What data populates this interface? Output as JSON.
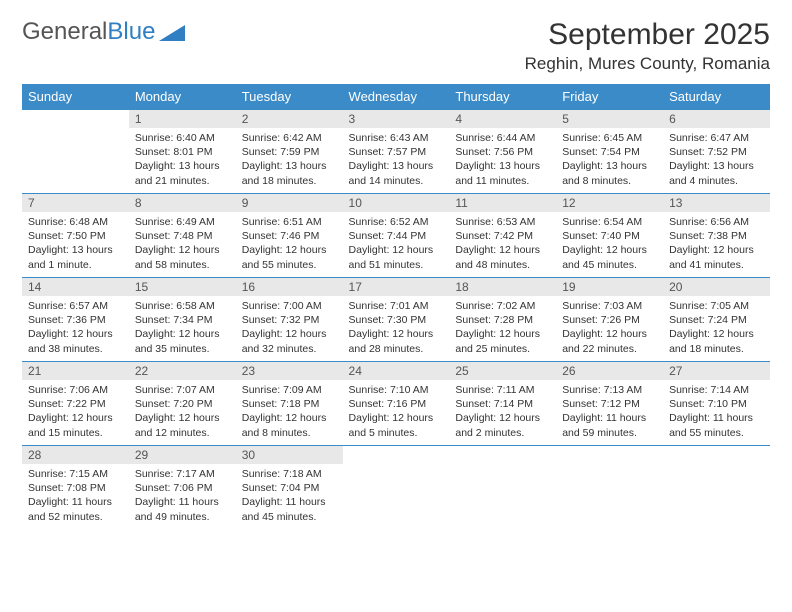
{
  "brand": {
    "part1": "General",
    "part2": "Blue"
  },
  "title": "September 2025",
  "location": "Reghin, Mures County, Romania",
  "colors": {
    "header_bg": "#3b8bc8",
    "header_text": "#ffffff",
    "daynum_bg": "#e8e8e8",
    "border": "#3b8bc8",
    "text": "#333333"
  },
  "weekdays": [
    "Sunday",
    "Monday",
    "Tuesday",
    "Wednesday",
    "Thursday",
    "Friday",
    "Saturday"
  ],
  "weeks": [
    [
      null,
      {
        "n": "1",
        "sr": "6:40 AM",
        "ss": "8:01 PM",
        "dl": "13 hours and 21 minutes."
      },
      {
        "n": "2",
        "sr": "6:42 AM",
        "ss": "7:59 PM",
        "dl": "13 hours and 18 minutes."
      },
      {
        "n": "3",
        "sr": "6:43 AM",
        "ss": "7:57 PM",
        "dl": "13 hours and 14 minutes."
      },
      {
        "n": "4",
        "sr": "6:44 AM",
        "ss": "7:56 PM",
        "dl": "13 hours and 11 minutes."
      },
      {
        "n": "5",
        "sr": "6:45 AM",
        "ss": "7:54 PM",
        "dl": "13 hours and 8 minutes."
      },
      {
        "n": "6",
        "sr": "6:47 AM",
        "ss": "7:52 PM",
        "dl": "13 hours and 4 minutes."
      }
    ],
    [
      {
        "n": "7",
        "sr": "6:48 AM",
        "ss": "7:50 PM",
        "dl": "13 hours and 1 minute."
      },
      {
        "n": "8",
        "sr": "6:49 AM",
        "ss": "7:48 PM",
        "dl": "12 hours and 58 minutes."
      },
      {
        "n": "9",
        "sr": "6:51 AM",
        "ss": "7:46 PM",
        "dl": "12 hours and 55 minutes."
      },
      {
        "n": "10",
        "sr": "6:52 AM",
        "ss": "7:44 PM",
        "dl": "12 hours and 51 minutes."
      },
      {
        "n": "11",
        "sr": "6:53 AM",
        "ss": "7:42 PM",
        "dl": "12 hours and 48 minutes."
      },
      {
        "n": "12",
        "sr": "6:54 AM",
        "ss": "7:40 PM",
        "dl": "12 hours and 45 minutes."
      },
      {
        "n": "13",
        "sr": "6:56 AM",
        "ss": "7:38 PM",
        "dl": "12 hours and 41 minutes."
      }
    ],
    [
      {
        "n": "14",
        "sr": "6:57 AM",
        "ss": "7:36 PM",
        "dl": "12 hours and 38 minutes."
      },
      {
        "n": "15",
        "sr": "6:58 AM",
        "ss": "7:34 PM",
        "dl": "12 hours and 35 minutes."
      },
      {
        "n": "16",
        "sr": "7:00 AM",
        "ss": "7:32 PM",
        "dl": "12 hours and 32 minutes."
      },
      {
        "n": "17",
        "sr": "7:01 AM",
        "ss": "7:30 PM",
        "dl": "12 hours and 28 minutes."
      },
      {
        "n": "18",
        "sr": "7:02 AM",
        "ss": "7:28 PM",
        "dl": "12 hours and 25 minutes."
      },
      {
        "n": "19",
        "sr": "7:03 AM",
        "ss": "7:26 PM",
        "dl": "12 hours and 22 minutes."
      },
      {
        "n": "20",
        "sr": "7:05 AM",
        "ss": "7:24 PM",
        "dl": "12 hours and 18 minutes."
      }
    ],
    [
      {
        "n": "21",
        "sr": "7:06 AM",
        "ss": "7:22 PM",
        "dl": "12 hours and 15 minutes."
      },
      {
        "n": "22",
        "sr": "7:07 AM",
        "ss": "7:20 PM",
        "dl": "12 hours and 12 minutes."
      },
      {
        "n": "23",
        "sr": "7:09 AM",
        "ss": "7:18 PM",
        "dl": "12 hours and 8 minutes."
      },
      {
        "n": "24",
        "sr": "7:10 AM",
        "ss": "7:16 PM",
        "dl": "12 hours and 5 minutes."
      },
      {
        "n": "25",
        "sr": "7:11 AM",
        "ss": "7:14 PM",
        "dl": "12 hours and 2 minutes."
      },
      {
        "n": "26",
        "sr": "7:13 AM",
        "ss": "7:12 PM",
        "dl": "11 hours and 59 minutes."
      },
      {
        "n": "27",
        "sr": "7:14 AM",
        "ss": "7:10 PM",
        "dl": "11 hours and 55 minutes."
      }
    ],
    [
      {
        "n": "28",
        "sr": "7:15 AM",
        "ss": "7:08 PM",
        "dl": "11 hours and 52 minutes."
      },
      {
        "n": "29",
        "sr": "7:17 AM",
        "ss": "7:06 PM",
        "dl": "11 hours and 49 minutes."
      },
      {
        "n": "30",
        "sr": "7:18 AM",
        "ss": "7:04 PM",
        "dl": "11 hours and 45 minutes."
      },
      null,
      null,
      null,
      null
    ]
  ],
  "labels": {
    "sunrise": "Sunrise:",
    "sunset": "Sunset:",
    "daylight": "Daylight:"
  }
}
